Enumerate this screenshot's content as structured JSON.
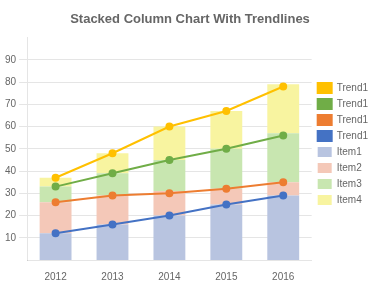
{
  "chart_data": {
    "type": "bar",
    "title": "Stacked Column Chart With Trendlines",
    "categories": [
      "2012",
      "2013",
      "2014",
      "2015",
      "2016"
    ],
    "stacked": true,
    "grid": true,
    "legend": "right",
    "ylim": [
      0,
      100
    ],
    "yticks": [
      10,
      20,
      30,
      40,
      50,
      60,
      70,
      80,
      90
    ],
    "series": [
      {
        "name": "Item1",
        "type": "bar",
        "color": "#b8c4e0",
        "values": [
          12,
          16,
          20,
          25,
          29
        ]
      },
      {
        "name": "Item2",
        "type": "bar",
        "color": "#f4c8b8",
        "values": [
          14,
          13,
          11,
          7,
          6
        ]
      },
      {
        "name": "Item3",
        "type": "bar",
        "color": "#c8e6b0",
        "values": [
          7,
          10,
          14,
          18,
          22
        ]
      },
      {
        "name": "Item4",
        "type": "bar",
        "color": "#f8f4a0",
        "values": [
          4,
          9,
          15,
          17,
          22
        ]
      },
      {
        "name": "Trend1",
        "type": "line",
        "marker": "circle",
        "color": "#ffc000",
        "values": [
          37,
          48,
          60,
          67,
          78
        ]
      },
      {
        "name": "Trend1",
        "type": "line",
        "marker": "circle",
        "color": "#70ad47",
        "values": [
          33,
          39,
          45,
          50,
          56
        ]
      },
      {
        "name": "Trend1",
        "type": "line",
        "marker": "circle",
        "color": "#ed7d31",
        "values": [
          26,
          29,
          30,
          32,
          35
        ]
      },
      {
        "name": "Trend1",
        "type": "line",
        "marker": "circle",
        "color": "#4472c4",
        "values": [
          12,
          16,
          20,
          25,
          29
        ]
      }
    ]
  }
}
